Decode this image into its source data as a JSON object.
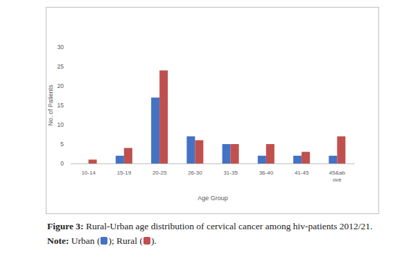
{
  "chart_data": {
    "type": "bar",
    "categories": [
      "10-14",
      "15-19",
      "20-25",
      "26-30",
      "31-35",
      "36-40",
      "41-45",
      "45&above"
    ],
    "series": [
      {
        "name": "Urban",
        "color": "#4472c4",
        "values": [
          0,
          2,
          17,
          7,
          5,
          2,
          2,
          2
        ]
      },
      {
        "name": "Rural",
        "color": "#c0504d",
        "values": [
          1,
          4,
          24,
          6,
          5,
          5,
          3,
          7
        ]
      }
    ],
    "x_label": "Age Group",
    "y_label": "No. of Patients",
    "ylim": [
      0,
      30
    ],
    "yticks": [
      0,
      5,
      10,
      15,
      20,
      25,
      30
    ],
    "grid": false
  },
  "caption": {
    "label": "Figure 3:",
    "text": "Rural-Urban age distribution of cervical cancer among hiv-patients 2012/21.",
    "note_label": "Note:",
    "note_parts": [
      "Urban (",
      "); Rural (",
      ")."
    ]
  }
}
